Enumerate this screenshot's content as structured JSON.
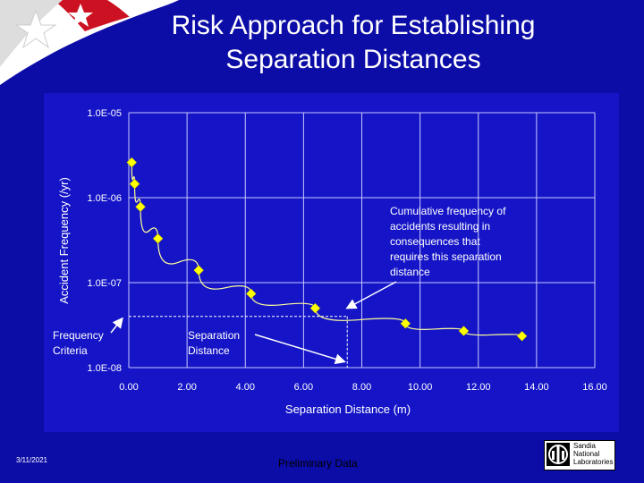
{
  "slide": {
    "title_line1": "Risk Approach for Establishing",
    "title_line2": "Separation Distances",
    "date": "3/11/2021",
    "note": "Preliminary Data",
    "logo_lines": [
      "Sandia",
      "National",
      "Laboratories"
    ]
  },
  "chart_data": {
    "type": "scatter",
    "xlabel": "Separation Distance  (m)",
    "ylabel": "Accident Frequency (/yr)",
    "x_ticks": [
      "0.00",
      "2.00",
      "4.00",
      "6.00",
      "8.00",
      "10.00",
      "12.00",
      "14.00",
      "16.00"
    ],
    "y_ticks": [
      "1.0E-05",
      "1.0E-06",
      "1.0E-07",
      "1.0E-08"
    ],
    "xlim": [
      0,
      16
    ],
    "ylim": [
      1e-08,
      1e-05
    ],
    "y_scale": "log",
    "grid": true,
    "series": [
      {
        "x": [
          0.1,
          0.2,
          0.4,
          1.0,
          2.4,
          4.2,
          6.4,
          9.5,
          11.5,
          13.5
        ],
        "y": [
          2.6e-06,
          1.45e-06,
          7.8e-07,
          3.3e-07,
          1.4e-07,
          7.4e-08,
          5e-08,
          3.3e-08,
          2.7e-08,
          2.35e-08
        ],
        "color": "#ffff00"
      }
    ],
    "threshold": {
      "frequency": 4e-08,
      "distance": 7.5
    },
    "annotations": {
      "cumulative": [
        "Cumulative frequency of",
        "accidents resulting in",
        "consequences that",
        "requires this separation",
        "distance"
      ],
      "frequency_criteria": [
        "Frequency",
        "Criteria"
      ],
      "separation_distance": [
        "Separation",
        "Distance"
      ]
    },
    "colors": {
      "panel": "#1515c7",
      "grid": "#c8c8ff",
      "curve": "#ffff99",
      "marker": "#ffff00",
      "text": "#ffffff"
    }
  }
}
